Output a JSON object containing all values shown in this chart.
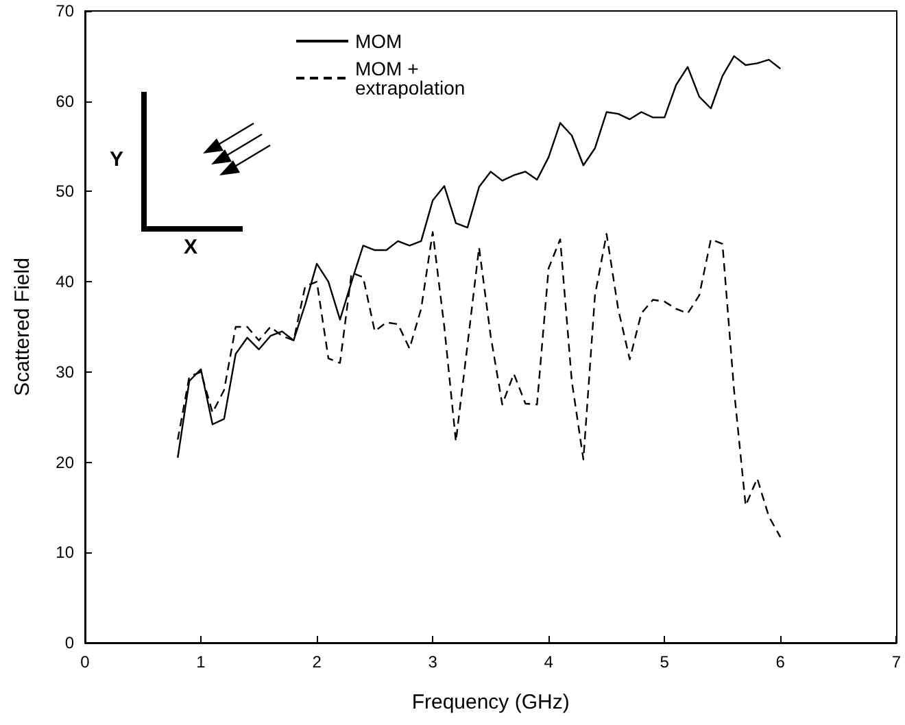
{
  "chart_data": {
    "type": "line",
    "xlabel": "Frequency (GHz)",
    "ylabel": "Scattered Field",
    "x": [
      0.8,
      0.9,
      1.0,
      1.1,
      1.2,
      1.3,
      1.4,
      1.5,
      1.6,
      1.7,
      1.8,
      1.9,
      2.0,
      2.1,
      2.2,
      2.3,
      2.4,
      2.5,
      2.6,
      2.7,
      2.8,
      2.9,
      3.0,
      3.1,
      3.2,
      3.3,
      3.4,
      3.5,
      3.6,
      3.7,
      3.8,
      3.9,
      4.0,
      4.1,
      4.2,
      4.3,
      4.4,
      4.5,
      4.6,
      4.7,
      4.8,
      4.9,
      5.0,
      5.1,
      5.2,
      5.3,
      5.4,
      5.5,
      5.6,
      5.7,
      5.8,
      5.9,
      6.0
    ],
    "series": [
      {
        "name": "MOM",
        "color": "#000000",
        "line_style": "solid",
        "values": [
          20.5,
          29,
          30.3,
          24.2,
          24.8,
          32,
          33.8,
          32.5,
          34,
          34.5,
          33.5,
          37.5,
          42,
          40,
          35.8,
          40,
          44,
          43.5,
          43.5,
          44.5,
          44,
          44.5,
          49,
          50.6,
          46.5,
          46,
          50.5,
          52.2,
          51.2,
          51.8,
          52.2,
          51.3,
          53.8,
          57.6,
          56.2,
          52.9,
          54.8,
          58.8,
          58.6,
          58,
          58.8,
          58.2,
          58.2,
          61.8,
          63.8,
          60.5,
          59.2,
          62.8,
          65,
          64,
          64.2,
          64.6,
          63.6
        ]
      },
      {
        "name": "MOM + extrapolation",
        "color": "#000000",
        "line_style": "dashed",
        "values": [
          22.5,
          29.5,
          30,
          25.5,
          28,
          35,
          35,
          33.5,
          35,
          34,
          33.5,
          39.5,
          40,
          31.5,
          31,
          41,
          40.5,
          34.5,
          35.5,
          35.3,
          32.6,
          37,
          45.5,
          35,
          22.3,
          33,
          43.8,
          34,
          26.4,
          29.8,
          26.5,
          26.4,
          41.5,
          44.7,
          29,
          20.3,
          38.5,
          45.3,
          37,
          31.4,
          36.5,
          38,
          37.8,
          37,
          36.5,
          38.5,
          44.7,
          44.2,
          28,
          15.2,
          18.2,
          14,
          11.7
        ]
      }
    ],
    "xlim": [
      0,
      7
    ],
    "xticks": [
      0,
      1,
      2,
      3,
      4,
      5,
      6,
      7
    ],
    "ylim": [
      0,
      70
    ],
    "yticks": [
      0,
      10,
      20,
      30,
      40,
      50,
      60,
      70
    ],
    "grid": false,
    "legend": "top",
    "marker": "none",
    "annotations": [
      "Y",
      "X"
    ]
  }
}
